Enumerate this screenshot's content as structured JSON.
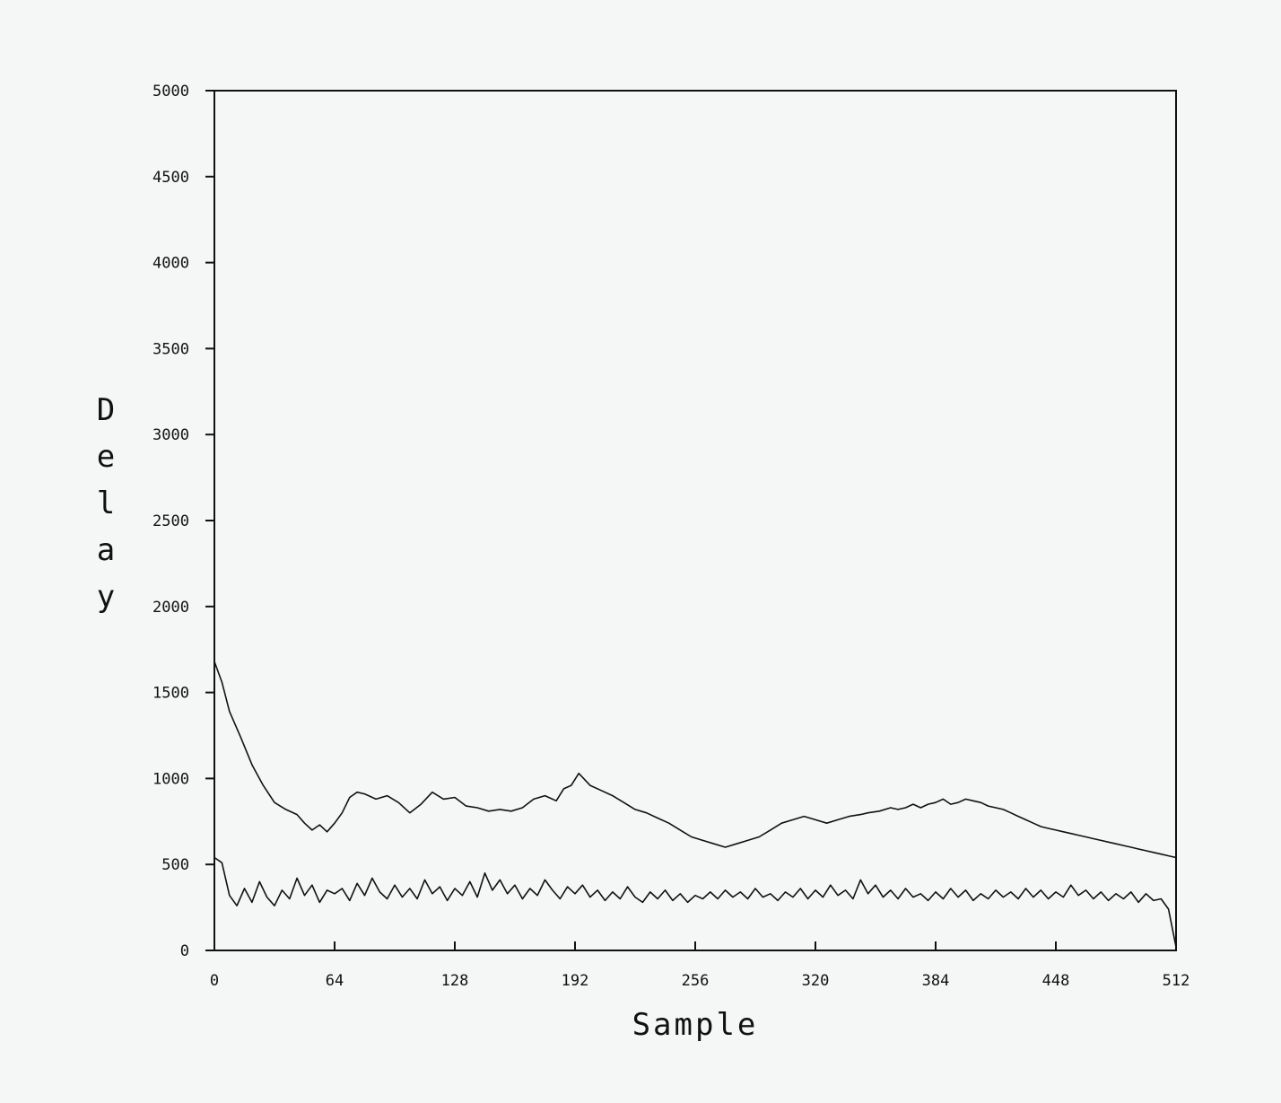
{
  "chart_data": {
    "type": "line",
    "title": "",
    "xlabel": "Sample",
    "ylabel": "Delay",
    "xlim": [
      0,
      512
    ],
    "ylim": [
      0,
      5000
    ],
    "x_ticks": [
      "0",
      "64",
      "128",
      "192",
      "256",
      "320",
      "384",
      "448",
      "512"
    ],
    "y_ticks": [
      "0",
      "500",
      "1000",
      "1500",
      "2000",
      "2500",
      "3000",
      "3500",
      "4000",
      "4500",
      "5000"
    ],
    "grid": false,
    "legend": "none",
    "line_color": "#111111",
    "series": [
      {
        "points": [
          [
            0,
            1680
          ],
          [
            4,
            1560
          ],
          [
            8,
            1390
          ],
          [
            14,
            1240
          ],
          [
            20,
            1080
          ],
          [
            26,
            960
          ],
          [
            32,
            860
          ],
          [
            38,
            820
          ],
          [
            44,
            790
          ],
          [
            48,
            740
          ],
          [
            52,
            700
          ],
          [
            56,
            730
          ],
          [
            60,
            690
          ],
          [
            64,
            740
          ],
          [
            68,
            800
          ],
          [
            72,
            890
          ],
          [
            76,
            920
          ],
          [
            80,
            910
          ],
          [
            86,
            880
          ],
          [
            92,
            900
          ],
          [
            98,
            860
          ],
          [
            104,
            800
          ],
          [
            110,
            850
          ],
          [
            116,
            920
          ],
          [
            122,
            880
          ],
          [
            128,
            890
          ],
          [
            134,
            840
          ],
          [
            140,
            830
          ],
          [
            146,
            810
          ],
          [
            152,
            820
          ],
          [
            158,
            810
          ],
          [
            164,
            830
          ],
          [
            170,
            880
          ],
          [
            176,
            900
          ],
          [
            182,
            870
          ],
          [
            186,
            940
          ],
          [
            190,
            960
          ],
          [
            194,
            1030
          ],
          [
            200,
            960
          ],
          [
            206,
            930
          ],
          [
            212,
            900
          ],
          [
            218,
            860
          ],
          [
            224,
            820
          ],
          [
            230,
            800
          ],
          [
            236,
            770
          ],
          [
            242,
            740
          ],
          [
            248,
            700
          ],
          [
            254,
            660
          ],
          [
            260,
            640
          ],
          [
            266,
            620
          ],
          [
            272,
            600
          ],
          [
            278,
            620
          ],
          [
            284,
            640
          ],
          [
            290,
            660
          ],
          [
            296,
            700
          ],
          [
            302,
            740
          ],
          [
            308,
            760
          ],
          [
            314,
            780
          ],
          [
            320,
            760
          ],
          [
            326,
            740
          ],
          [
            332,
            760
          ],
          [
            338,
            780
          ],
          [
            344,
            790
          ],
          [
            348,
            800
          ],
          [
            354,
            810
          ],
          [
            360,
            830
          ],
          [
            364,
            820
          ],
          [
            368,
            830
          ],
          [
            372,
            850
          ],
          [
            376,
            830
          ],
          [
            380,
            850
          ],
          [
            384,
            860
          ],
          [
            388,
            880
          ],
          [
            392,
            850
          ],
          [
            396,
            860
          ],
          [
            400,
            880
          ],
          [
            404,
            870
          ],
          [
            408,
            860
          ],
          [
            412,
            840
          ],
          [
            416,
            830
          ],
          [
            420,
            820
          ],
          [
            424,
            800
          ],
          [
            428,
            780
          ],
          [
            432,
            760
          ],
          [
            436,
            740
          ],
          [
            440,
            720
          ],
          [
            444,
            710
          ],
          [
            448,
            700
          ],
          [
            452,
            690
          ],
          [
            456,
            680
          ],
          [
            460,
            670
          ],
          [
            464,
            660
          ],
          [
            468,
            650
          ],
          [
            472,
            640
          ],
          [
            476,
            630
          ],
          [
            480,
            620
          ],
          [
            484,
            610
          ],
          [
            488,
            600
          ],
          [
            492,
            590
          ],
          [
            496,
            580
          ],
          [
            500,
            570
          ],
          [
            504,
            560
          ],
          [
            508,
            550
          ],
          [
            512,
            540
          ]
        ]
      },
      {
        "points": [
          [
            0,
            540
          ],
          [
            4,
            510
          ],
          [
            8,
            320
          ],
          [
            12,
            260
          ],
          [
            16,
            360
          ],
          [
            20,
            280
          ],
          [
            24,
            400
          ],
          [
            28,
            310
          ],
          [
            32,
            260
          ],
          [
            36,
            350
          ],
          [
            40,
            300
          ],
          [
            44,
            420
          ],
          [
            48,
            320
          ],
          [
            52,
            380
          ],
          [
            56,
            280
          ],
          [
            60,
            350
          ],
          [
            64,
            330
          ],
          [
            68,
            360
          ],
          [
            72,
            290
          ],
          [
            76,
            390
          ],
          [
            80,
            320
          ],
          [
            84,
            420
          ],
          [
            88,
            340
          ],
          [
            92,
            300
          ],
          [
            96,
            380
          ],
          [
            100,
            310
          ],
          [
            104,
            360
          ],
          [
            108,
            300
          ],
          [
            112,
            410
          ],
          [
            116,
            330
          ],
          [
            120,
            370
          ],
          [
            124,
            290
          ],
          [
            128,
            360
          ],
          [
            132,
            320
          ],
          [
            136,
            400
          ],
          [
            140,
            310
          ],
          [
            144,
            450
          ],
          [
            148,
            350
          ],
          [
            152,
            410
          ],
          [
            156,
            330
          ],
          [
            160,
            380
          ],
          [
            164,
            300
          ],
          [
            168,
            360
          ],
          [
            172,
            320
          ],
          [
            176,
            410
          ],
          [
            180,
            350
          ],
          [
            184,
            300
          ],
          [
            188,
            370
          ],
          [
            192,
            330
          ],
          [
            196,
            380
          ],
          [
            200,
            310
          ],
          [
            204,
            350
          ],
          [
            208,
            290
          ],
          [
            212,
            340
          ],
          [
            216,
            300
          ],
          [
            220,
            370
          ],
          [
            224,
            310
          ],
          [
            228,
            280
          ],
          [
            232,
            340
          ],
          [
            236,
            300
          ],
          [
            240,
            350
          ],
          [
            244,
            290
          ],
          [
            248,
            330
          ],
          [
            252,
            280
          ],
          [
            256,
            320
          ],
          [
            260,
            300
          ],
          [
            264,
            340
          ],
          [
            268,
            300
          ],
          [
            272,
            350
          ],
          [
            276,
            310
          ],
          [
            280,
            340
          ],
          [
            284,
            300
          ],
          [
            288,
            360
          ],
          [
            292,
            310
          ],
          [
            296,
            330
          ],
          [
            300,
            290
          ],
          [
            304,
            340
          ],
          [
            308,
            310
          ],
          [
            312,
            360
          ],
          [
            316,
            300
          ],
          [
            320,
            350
          ],
          [
            324,
            310
          ],
          [
            328,
            380
          ],
          [
            332,
            320
          ],
          [
            336,
            350
          ],
          [
            340,
            300
          ],
          [
            344,
            410
          ],
          [
            348,
            330
          ],
          [
            352,
            380
          ],
          [
            356,
            310
          ],
          [
            360,
            350
          ],
          [
            364,
            300
          ],
          [
            368,
            360
          ],
          [
            372,
            310
          ],
          [
            376,
            330
          ],
          [
            380,
            290
          ],
          [
            384,
            340
          ],
          [
            388,
            300
          ],
          [
            392,
            360
          ],
          [
            396,
            310
          ],
          [
            400,
            350
          ],
          [
            404,
            290
          ],
          [
            408,
            330
          ],
          [
            412,
            300
          ],
          [
            416,
            350
          ],
          [
            420,
            310
          ],
          [
            424,
            340
          ],
          [
            428,
            300
          ],
          [
            432,
            360
          ],
          [
            436,
            310
          ],
          [
            440,
            350
          ],
          [
            444,
            300
          ],
          [
            448,
            340
          ],
          [
            452,
            310
          ],
          [
            456,
            380
          ],
          [
            460,
            320
          ],
          [
            464,
            350
          ],
          [
            468,
            300
          ],
          [
            472,
            340
          ],
          [
            476,
            290
          ],
          [
            480,
            330
          ],
          [
            484,
            300
          ],
          [
            488,
            340
          ],
          [
            492,
            280
          ],
          [
            496,
            330
          ],
          [
            500,
            290
          ],
          [
            504,
            300
          ],
          [
            508,
            240
          ],
          [
            512,
            20
          ]
        ]
      }
    ]
  }
}
